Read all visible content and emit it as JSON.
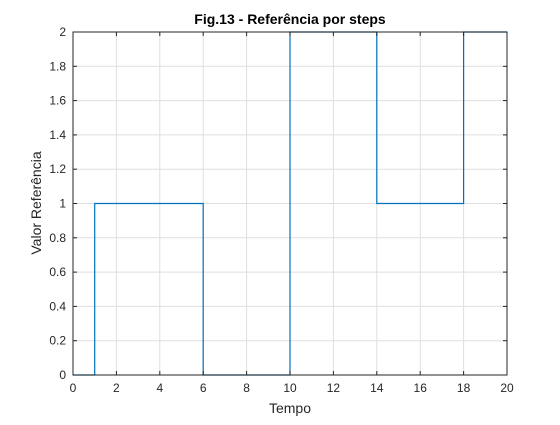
{
  "chart_data": {
    "type": "line",
    "title": "Fig.13 - Referência por steps",
    "xlabel": "Tempo",
    "ylabel": "Valor Referência",
    "xlim": [
      0,
      20
    ],
    "ylim": [
      0,
      2
    ],
    "xticks": [
      0,
      2,
      4,
      6,
      8,
      10,
      12,
      14,
      16,
      18,
      20
    ],
    "yticks": [
      0,
      0.2,
      0.4,
      0.6,
      0.8,
      1,
      1.2,
      1.4,
      1.6,
      1.8,
      2
    ],
    "xtick_labels": [
      "0",
      "2",
      "4",
      "6",
      "8",
      "10",
      "12",
      "14",
      "16",
      "18",
      "20"
    ],
    "ytick_labels": [
      "0",
      "0.2",
      "0.4",
      "0.6",
      "0.8",
      "1",
      "1.2",
      "1.4",
      "1.6",
      "1.8",
      "2"
    ],
    "grid": true,
    "box": true,
    "series": [
      {
        "color": "#0072bd",
        "x": [
          0,
          1,
          1,
          6,
          6,
          10,
          10,
          14,
          14,
          18,
          18,
          20
        ],
        "y": [
          0,
          0,
          1,
          1,
          0,
          0,
          2,
          2,
          1,
          1,
          2,
          2
        ]
      }
    ]
  }
}
